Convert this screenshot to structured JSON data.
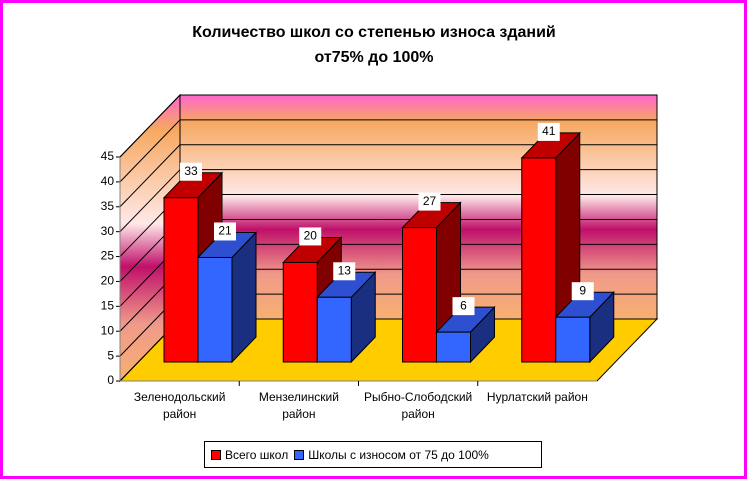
{
  "chart_data": {
    "type": "bar3d",
    "title": [
      "Количество школ со степенью износа зданий",
      "от75% до 100%"
    ],
    "categories": [
      "Зеленодольский район",
      "Мензелинский район",
      "Рыбно-Слободский район",
      "Нурлатский район"
    ],
    "series": [
      {
        "name": "Всего школ",
        "color": "#ff0000",
        "values": [
          33,
          20,
          27,
          41
        ]
      },
      {
        "name": "Школы с износом от 75 до 100%",
        "color": "#3366ff",
        "values": [
          21,
          13,
          6,
          9
        ]
      }
    ],
    "ylim": [
      0,
      45
    ],
    "yticks": [
      0,
      5,
      10,
      15,
      20,
      25,
      30,
      35,
      40,
      45
    ],
    "grid": true
  }
}
